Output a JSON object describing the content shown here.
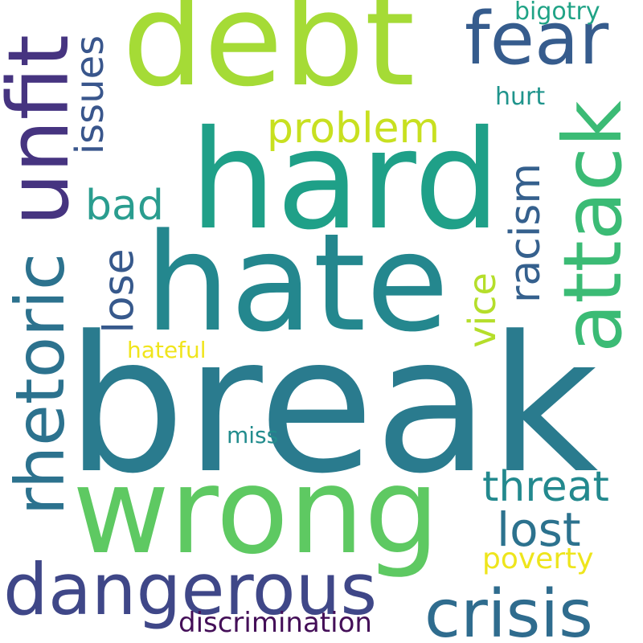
{
  "words": [
    {
      "text": "break",
      "color": "#2a7b8e"
    },
    {
      "text": "hate",
      "color": "#24878e"
    },
    {
      "text": "hard",
      "color": "#1fa088"
    },
    {
      "text": "debt",
      "color": "#a5db36"
    },
    {
      "text": "wrong",
      "color": "#5ec962"
    },
    {
      "text": "dangerous",
      "color": "#3f4788"
    },
    {
      "text": "unfit",
      "color": "#463480"
    },
    {
      "text": "rhetoric",
      "color": "#2c728e"
    },
    {
      "text": "fear",
      "color": "#365c8d"
    },
    {
      "text": "attack",
      "color": "#3bbb75"
    },
    {
      "text": "crisis",
      "color": "#2f6c8e"
    },
    {
      "text": "problem",
      "color": "#c8e020"
    },
    {
      "text": "issues",
      "color": "#39568c"
    },
    {
      "text": "threat",
      "color": "#23898e"
    },
    {
      "text": "lost",
      "color": "#2c728e"
    },
    {
      "text": "racism",
      "color": "#35608d"
    },
    {
      "text": "lose",
      "color": "#37598c"
    },
    {
      "text": "bad",
      "color": "#2a9d8f"
    },
    {
      "text": "vice",
      "color": "#b5de2b"
    },
    {
      "text": "poverty",
      "color": "#eee51c"
    },
    {
      "text": "discrimination",
      "color": "#440f58"
    },
    {
      "text": "hurt",
      "color": "#1f948c"
    },
    {
      "text": "bigotry",
      "color": "#20a386"
    },
    {
      "text": "hateful",
      "color": "#f0e51c"
    },
    {
      "text": "miss",
      "color": "#228c8d"
    }
  ]
}
